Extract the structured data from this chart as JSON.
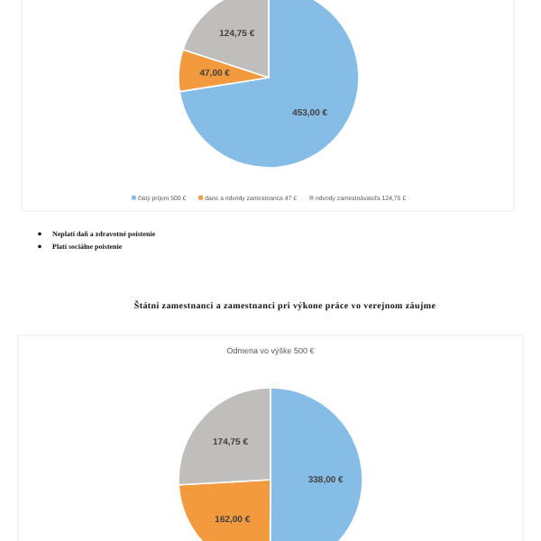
{
  "chart_data": [
    {
      "type": "pie",
      "categories": [
        "čistý príjem 500 €",
        "dane a odvody zamestnanca 47 €",
        "odvody zamestnávateľa 124,75 €"
      ],
      "values": [
        453,
        47,
        124.75
      ],
      "colors": [
        "#86bde6",
        "#f39a3f",
        "#bfbebd"
      ],
      "value_labels": [
        "453,00 €",
        "47,00 €",
        "124,75 €"
      ],
      "legend": "bottom",
      "annotations": [
        "Neplatí daň a zdravotné poistenie",
        "Platí sociálne poistenie"
      ]
    },
    {
      "type": "pie",
      "title": "Odmena vo výške 500 €",
      "categories": [
        null,
        null,
        null
      ],
      "values": [
        338,
        162,
        174.75
      ],
      "colors": [
        "#86bde6",
        "#f39a3f",
        "#bfbebd"
      ],
      "value_labels": [
        "338,00 €",
        "162,00 €",
        "174,75 €"
      ],
      "annotations": [
        "Štátni zamestnanci a zamestnanci pri výkone práce vo verejnom záujme"
      ]
    }
  ]
}
